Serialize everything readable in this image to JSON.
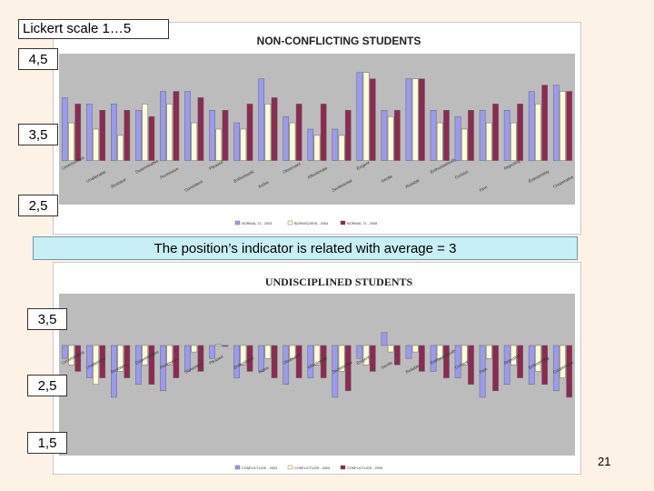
{
  "slide": {
    "scale_label": "Lickert scale 1…5",
    "caption": "The position’s indicator is related with average = 3",
    "page_number": "21"
  },
  "y_marks": {
    "top": [
      "4,5",
      "3,5",
      "2,5"
    ],
    "bottom": [
      "3,5",
      "2,5",
      "1,5"
    ]
  },
  "colors": {
    "series1": "#9a9af0",
    "series2": "#fbfbd8",
    "series3": "#8c2a52",
    "caption_bg": "#c8eef6",
    "page_bg": "#fdf2e6"
  },
  "chart_data": [
    {
      "type": "bar",
      "title": "NON-CONFLICTING STUDENTS",
      "baseline": 3,
      "ylim": [
        2.3,
        4.7
      ],
      "categories": [
        "Ceremonious",
        "Unalterable",
        "Resisted",
        "Determinative",
        "Permissive",
        "Consistent",
        "Pleased",
        "Enthusiastic",
        "Active",
        "Observant",
        "Affectionate",
        "Sentimental",
        "Exigent",
        "Gentle",
        "Reliable",
        "Enthusiastically",
        "Curious",
        "Firm",
        "Rejecting",
        "Enterprising",
        "Cooperative"
      ],
      "series": [
        {
          "name": "NORMAL 72 - 2003",
          "values": [
            4.0,
            3.9,
            3.9,
            3.8,
            4.1,
            4.1,
            3.8,
            3.6,
            4.3,
            3.7,
            3.5,
            3.5,
            4.4,
            3.8,
            4.3,
            3.8,
            3.7,
            3.8,
            3.8,
            4.1,
            4.2
          ]
        },
        {
          "name": "BORNSCHEIN - 2004",
          "values": [
            3.6,
            3.5,
            3.4,
            3.9,
            3.9,
            3.6,
            3.5,
            3.5,
            3.9,
            3.6,
            3.4,
            3.4,
            4.4,
            3.7,
            4.3,
            3.6,
            3.5,
            3.6,
            3.6,
            3.9,
            4.1
          ]
        },
        {
          "name": "NORMAL 72 - 2005",
          "values": [
            3.9,
            3.8,
            3.8,
            3.7,
            4.1,
            4.0,
            3.8,
            3.9,
            4.0,
            3.9,
            3.9,
            3.8,
            4.3,
            3.8,
            4.3,
            3.8,
            3.8,
            3.9,
            3.9,
            4.2,
            4.1
          ]
        }
      ]
    },
    {
      "type": "bar",
      "title": "UNDISCIPLINED STUDENTS",
      "baseline": 3,
      "ylim": [
        1.3,
        3.8
      ],
      "categories": [
        "Ceremonious",
        "Unalterable",
        "Resisted",
        "Determinative",
        "Permissive",
        "Consistent",
        "Pleased",
        "Enthusiastic",
        "Active",
        "Observant",
        "Affectionate",
        "Sentimental",
        "Exigent",
        "Gentle",
        "Reliable",
        "Enthusiastically",
        "Curious",
        "Firm",
        "Rejecting",
        "Enterprising",
        "Cooperative"
      ],
      "series": [
        {
          "name": "CONFLICTUOS - 2003",
          "values": [
            2.8,
            2.5,
            2.2,
            2.4,
            2.3,
            2.6,
            2.8,
            2.5,
            2.6,
            2.4,
            2.5,
            2.2,
            2.8,
            3.2,
            2.8,
            2.6,
            2.5,
            2.2,
            2.4,
            2.4,
            2.3
          ]
        },
        {
          "name": "CONFLICTUOS - 2004",
          "values": [
            2.7,
            2.4,
            2.6,
            2.7,
            2.7,
            2.9,
            3.02,
            2.7,
            2.8,
            2.8,
            2.7,
            2.6,
            2.7,
            2.9,
            2.9,
            2.8,
            2.7,
            2.8,
            2.7,
            2.6,
            2.5
          ]
        },
        {
          "name": "CONFLICTUOS - 2005",
          "values": [
            2.6,
            2.5,
            2.5,
            2.4,
            2.5,
            2.6,
            3.0,
            2.6,
            2.5,
            2.5,
            2.5,
            2.3,
            2.6,
            2.7,
            2.6,
            2.5,
            2.4,
            2.3,
            2.5,
            2.4,
            2.2
          ]
        }
      ]
    }
  ]
}
